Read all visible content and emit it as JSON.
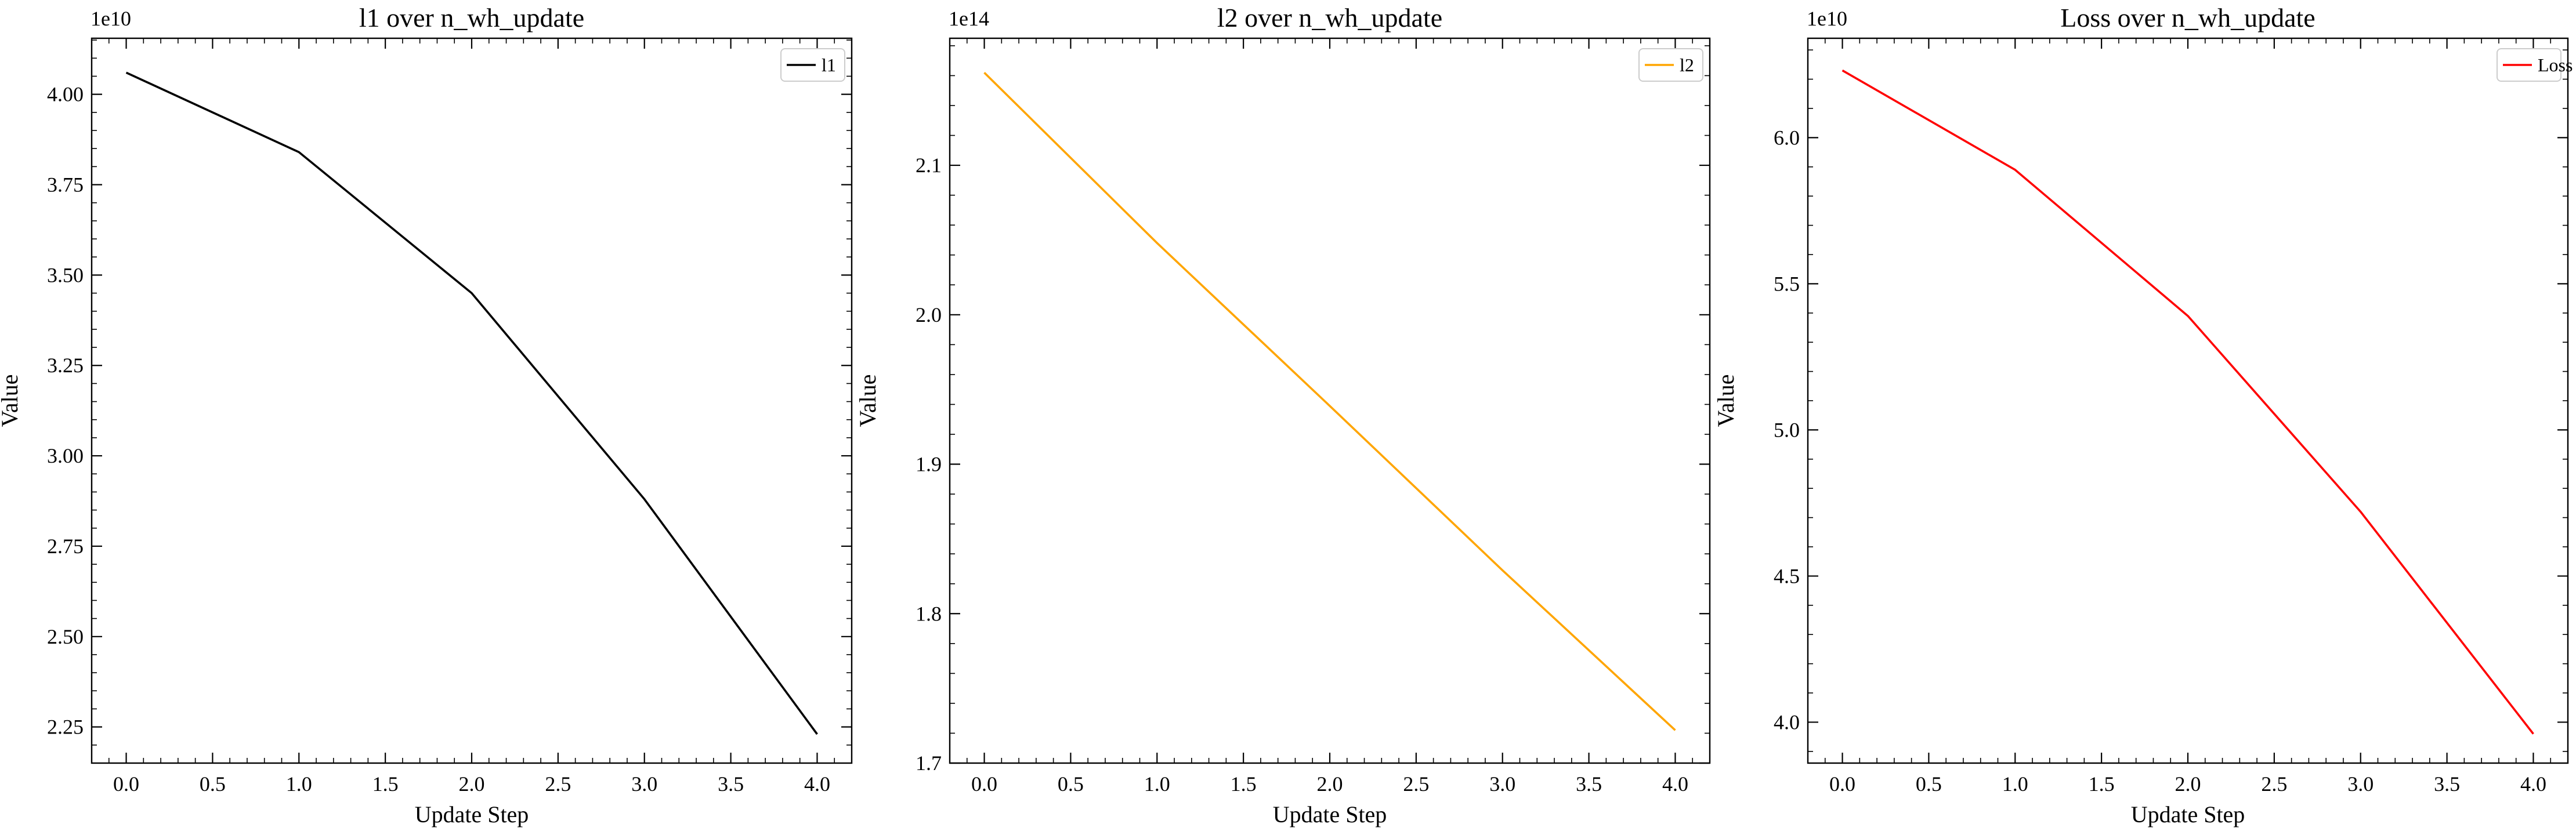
{
  "chart_data": [
    {
      "type": "line",
      "title": "l1 over n_wh_update",
      "xlabel": "Update Step",
      "ylabel": "Value",
      "offset_text": "1e10",
      "x": [
        0,
        1,
        2,
        3,
        4
      ],
      "xticks": [
        0.0,
        0.5,
        1.0,
        1.5,
        2.0,
        2.5,
        3.0,
        3.5,
        4.0
      ],
      "xtick_labels": [
        "0.0",
        "0.5",
        "1.0",
        "1.5",
        "2.0",
        "2.5",
        "3.0",
        "3.5",
        "4.0"
      ],
      "xlim": [
        -0.2,
        4.2
      ],
      "ylim": [
        2.15,
        4.155
      ],
      "yticks": [
        2.25,
        2.5,
        2.75,
        3.0,
        3.25,
        3.5,
        3.75,
        4.0
      ],
      "ytick_labels": [
        "2.25",
        "2.50",
        "2.75",
        "3.00",
        "3.25",
        "3.50",
        "3.75",
        "4.00"
      ],
      "yminor_step": 0.05,
      "series": [
        {
          "name": "l1",
          "color": "#000000",
          "values": [
            4.06,
            3.84,
            3.45,
            2.88,
            2.23
          ]
        }
      ],
      "legend_position": "upper-right"
    },
    {
      "type": "line",
      "title": "l2 over n_wh_update",
      "xlabel": "Update Step",
      "ylabel": "Value",
      "offset_text": "1e14",
      "x": [
        0,
        1,
        2,
        3,
        4
      ],
      "xticks": [
        0.0,
        0.5,
        1.0,
        1.5,
        2.0,
        2.5,
        3.0,
        3.5,
        4.0
      ],
      "xtick_labels": [
        "0.0",
        "0.5",
        "1.0",
        "1.5",
        "2.0",
        "2.5",
        "3.0",
        "3.5",
        "4.0"
      ],
      "xlim": [
        -0.2,
        4.2
      ],
      "ylim": [
        1.7,
        2.185
      ],
      "yticks": [
        1.7,
        1.8,
        1.9,
        2.0,
        2.1
      ],
      "ytick_labels": [
        "1.7",
        "1.8",
        "1.9",
        "2.0",
        "2.1"
      ],
      "yminor_step": 0.02,
      "series": [
        {
          "name": "l2",
          "color": "#FFA500",
          "values": [
            2.162,
            2.048,
            1.939,
            1.829,
            1.722
          ]
        }
      ],
      "legend_position": "upper-right"
    },
    {
      "type": "line",
      "title": "Loss over n_wh_update",
      "xlabel": "Update Step",
      "ylabel": "Value",
      "offset_text": "1e10",
      "x": [
        0,
        1,
        2,
        3,
        4
      ],
      "xticks": [
        0.0,
        0.5,
        1.0,
        1.5,
        2.0,
        2.5,
        3.0,
        3.5,
        4.0
      ],
      "xtick_labels": [
        "0.0",
        "0.5",
        "1.0",
        "1.5",
        "2.0",
        "2.5",
        "3.0",
        "3.5",
        "4.0"
      ],
      "xlim": [
        -0.2,
        4.2
      ],
      "ylim": [
        3.86,
        6.34
      ],
      "yticks": [
        4.0,
        4.5,
        5.0,
        5.5,
        6.0
      ],
      "ytick_labels": [
        "4.0",
        "4.5",
        "5.0",
        "5.5",
        "6.0"
      ],
      "yminor_step": 0.1,
      "series": [
        {
          "name": "Loss",
          "color": "#FF0000",
          "values": [
            6.23,
            5.89,
            5.39,
            4.72,
            3.96
          ]
        }
      ],
      "legend_position": "upper-right"
    }
  ]
}
